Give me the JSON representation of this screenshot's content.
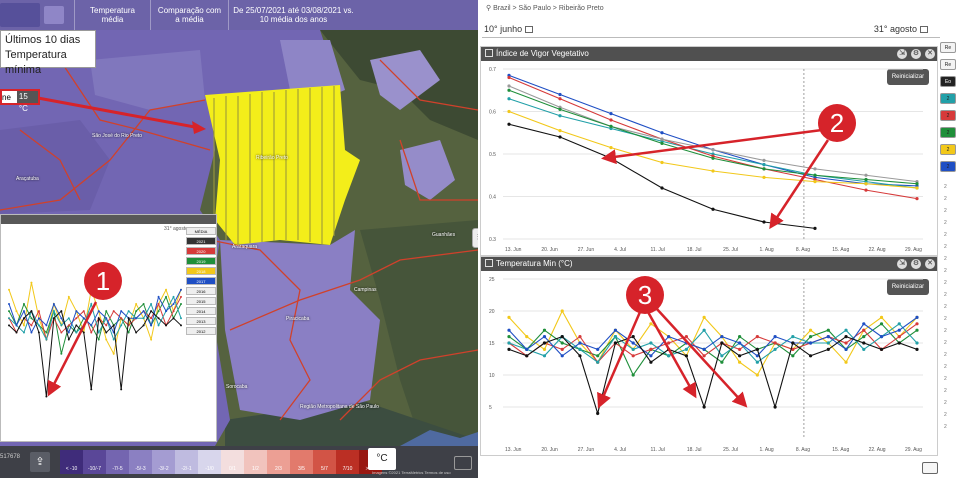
{
  "topbar": {
    "metric_tab": "Temperatura média",
    "compare_tab": "Comparação com a média",
    "period_text": "De 25/07/2021 até 03/08/2021 vs. 10 média dos anos"
  },
  "legend_box": {
    "line1": "Últimos 10 dias",
    "line2": "Temperatura mínima"
  },
  "temp_chip": {
    "label": "ne",
    "value": "15 °C"
  },
  "map_labels": {
    "sao_jose": "São José do Rio Preto",
    "ribeirao": "Ribeirão Preto",
    "araraquara": "Araraquara",
    "aracatuba": "Araçatuba",
    "sorocaba": "Sorocaba",
    "campinas": "Campinas",
    "sao_paulo": "Região Metropolitana de São Paulo",
    "piracicaba": "Piracicaba",
    "guanhaes": "Guanhães"
  },
  "mini_chart": {
    "date_label": "31° agosto",
    "side_labels": [
      "MÉDIA",
      "2021",
      "2020",
      "2019",
      "2018",
      "2017",
      "2016",
      "2015",
      "2014",
      "2013",
      "2012"
    ]
  },
  "bottombar": {
    "scale_cells": [
      "< -10",
      "-10/-7",
      "-7/-5",
      "-5/-3",
      "-3/-2",
      "-2/-1",
      "-1/0",
      "0/1",
      "1/2",
      "2/3",
      "3/5",
      "5/7",
      "7/10",
      "> 10"
    ],
    "scale_colors": [
      "#3f2c7a",
      "#5a4798",
      "#7465b0",
      "#8b80c2",
      "#a49cd2",
      "#bfbbe0",
      "#d8d6ec",
      "#f3dede",
      "#f1c3bd",
      "#ec9f94",
      "#e27a6c",
      "#d25446",
      "#bb2f24",
      "#991812"
    ],
    "unit": "°C",
    "coord": "517678",
    "attribution": "Imagens ©2021 TerraMetrics   Termos de uso"
  },
  "right": {
    "breadcrumb": "Brazil > São Paulo > Ribeirão Preto",
    "date_start": "10° junho",
    "date_end": "31° agosto",
    "reset_label": "Reinicializar"
  },
  "chart_vigor": {
    "type": "line",
    "title": "Índice de Vigor Vegetativo",
    "y_ticks": [
      "0.7",
      "0.6",
      "0.5",
      "0.4",
      "0.3"
    ],
    "x_ticks": [
      "13. Jun",
      "20. Jun",
      "27. Jun",
      "4. Jul",
      "11. Jul",
      "18. Jul",
      "25. Jul",
      "1. Aug",
      "8. Aug",
      "15. Aug",
      "22. Aug",
      "29. Aug"
    ],
    "ylim": [
      0.3,
      0.7
    ],
    "series_colors": [
      "#1f4fc4",
      "#22a0a8",
      "#d63a3a",
      "#9a9a9a",
      "#1f8f3a",
      "#f2c81a",
      "#111111"
    ],
    "series": [
      {
        "values": [
          0.685,
          0.64,
          0.595,
          0.55,
          0.51,
          0.475,
          0.445,
          0.43,
          0.425
        ]
      },
      {
        "values": [
          0.63,
          0.59,
          0.56,
          0.53,
          0.5,
          0.475,
          0.45,
          0.435,
          0.42
        ]
      },
      {
        "values": [
          0.68,
          0.63,
          0.58,
          0.535,
          0.495,
          0.465,
          0.44,
          0.415,
          0.395
        ]
      },
      {
        "values": [
          0.66,
          0.61,
          0.565,
          0.535,
          0.51,
          0.485,
          0.465,
          0.45,
          0.435
        ]
      },
      {
        "values": [
          0.65,
          0.605,
          0.565,
          0.525,
          0.49,
          0.465,
          0.45,
          0.44,
          0.43
        ]
      },
      {
        "values": [
          0.6,
          0.555,
          0.515,
          0.48,
          0.46,
          0.445,
          0.435,
          0.43,
          0.42
        ]
      },
      {
        "values": [
          0.57,
          0.54,
          0.49,
          0.42,
          0.37,
          0.34,
          0.325,
          null,
          null
        ]
      }
    ]
  },
  "chart_temp": {
    "type": "line",
    "title": "Temperatura Min (°C)",
    "y_ticks": [
      "25",
      "20",
      "15",
      "10",
      "5"
    ],
    "x_ticks": [
      "13. Jun",
      "20. Jun",
      "27. Jun",
      "4. Jul",
      "11. Jul",
      "18. Jul",
      "25. Jul",
      "1. Aug",
      "8. Aug",
      "15. Aug",
      "22. Aug",
      "29. Aug"
    ],
    "ylim": [
      0,
      25
    ],
    "series_colors": [
      "#f2c81a",
      "#1f8f3a",
      "#d63a3a",
      "#22a0a8",
      "#1f4fc4",
      "#111111"
    ],
    "series": [
      {
        "values": [
          19,
          16,
          14,
          20,
          15,
          12,
          17,
          14,
          18,
          16,
          13,
          19,
          16,
          12,
          10,
          15,
          14,
          17,
          15,
          12,
          17,
          19,
          16,
          19
        ]
      },
      {
        "values": [
          16,
          14,
          17,
          15,
          14,
          13,
          16,
          10,
          14,
          13,
          15,
          14,
          12,
          16,
          14,
          15,
          13,
          16,
          17,
          14,
          16,
          18,
          15,
          17
        ]
      },
      {
        "values": [
          15,
          13,
          15,
          14,
          16,
          12,
          15,
          13,
          14,
          15,
          16,
          13,
          15,
          14,
          16,
          15,
          14,
          15,
          16,
          15,
          17,
          14,
          16,
          18
        ]
      },
      {
        "values": [
          15,
          14,
          13,
          16,
          14,
          12,
          16,
          14,
          15,
          13,
          14,
          17,
          13,
          15,
          12,
          14,
          16,
          15,
          15,
          17,
          14,
          16,
          18,
          15
        ]
      },
      {
        "values": [
          17,
          14,
          16,
          13,
          15,
          14,
          17,
          15,
          13,
          16,
          15,
          14,
          16,
          15,
          13,
          16,
          15,
          15,
          16,
          14,
          18,
          16,
          17,
          19
        ]
      },
      {
        "values": [
          14,
          13,
          15,
          16,
          13,
          4,
          15,
          16,
          12,
          14,
          13,
          5,
          15,
          13,
          14,
          5,
          15,
          13,
          14,
          16,
          15,
          14,
          15,
          14
        ]
      }
    ]
  },
  "side_strip": {
    "chips": [
      "Re",
      "Re",
      "Eo",
      "2",
      "2",
      "2",
      "2",
      "2"
    ],
    "chip_colors": [
      "#f3f3f3",
      "#f3f3f3",
      "#222222",
      "#22a0a8",
      "#d63a3a",
      "#1f8f3a",
      "#f2c81a",
      "#1f4fc4"
    ],
    "years": [
      "2",
      "2",
      "2",
      "2",
      "2",
      "2",
      "2",
      "2",
      "2",
      "2",
      "2",
      "2",
      "2",
      "2",
      "2",
      "2",
      "2",
      "2",
      "2",
      "2",
      "2"
    ]
  },
  "annotations": [
    "1",
    "2",
    "3"
  ]
}
